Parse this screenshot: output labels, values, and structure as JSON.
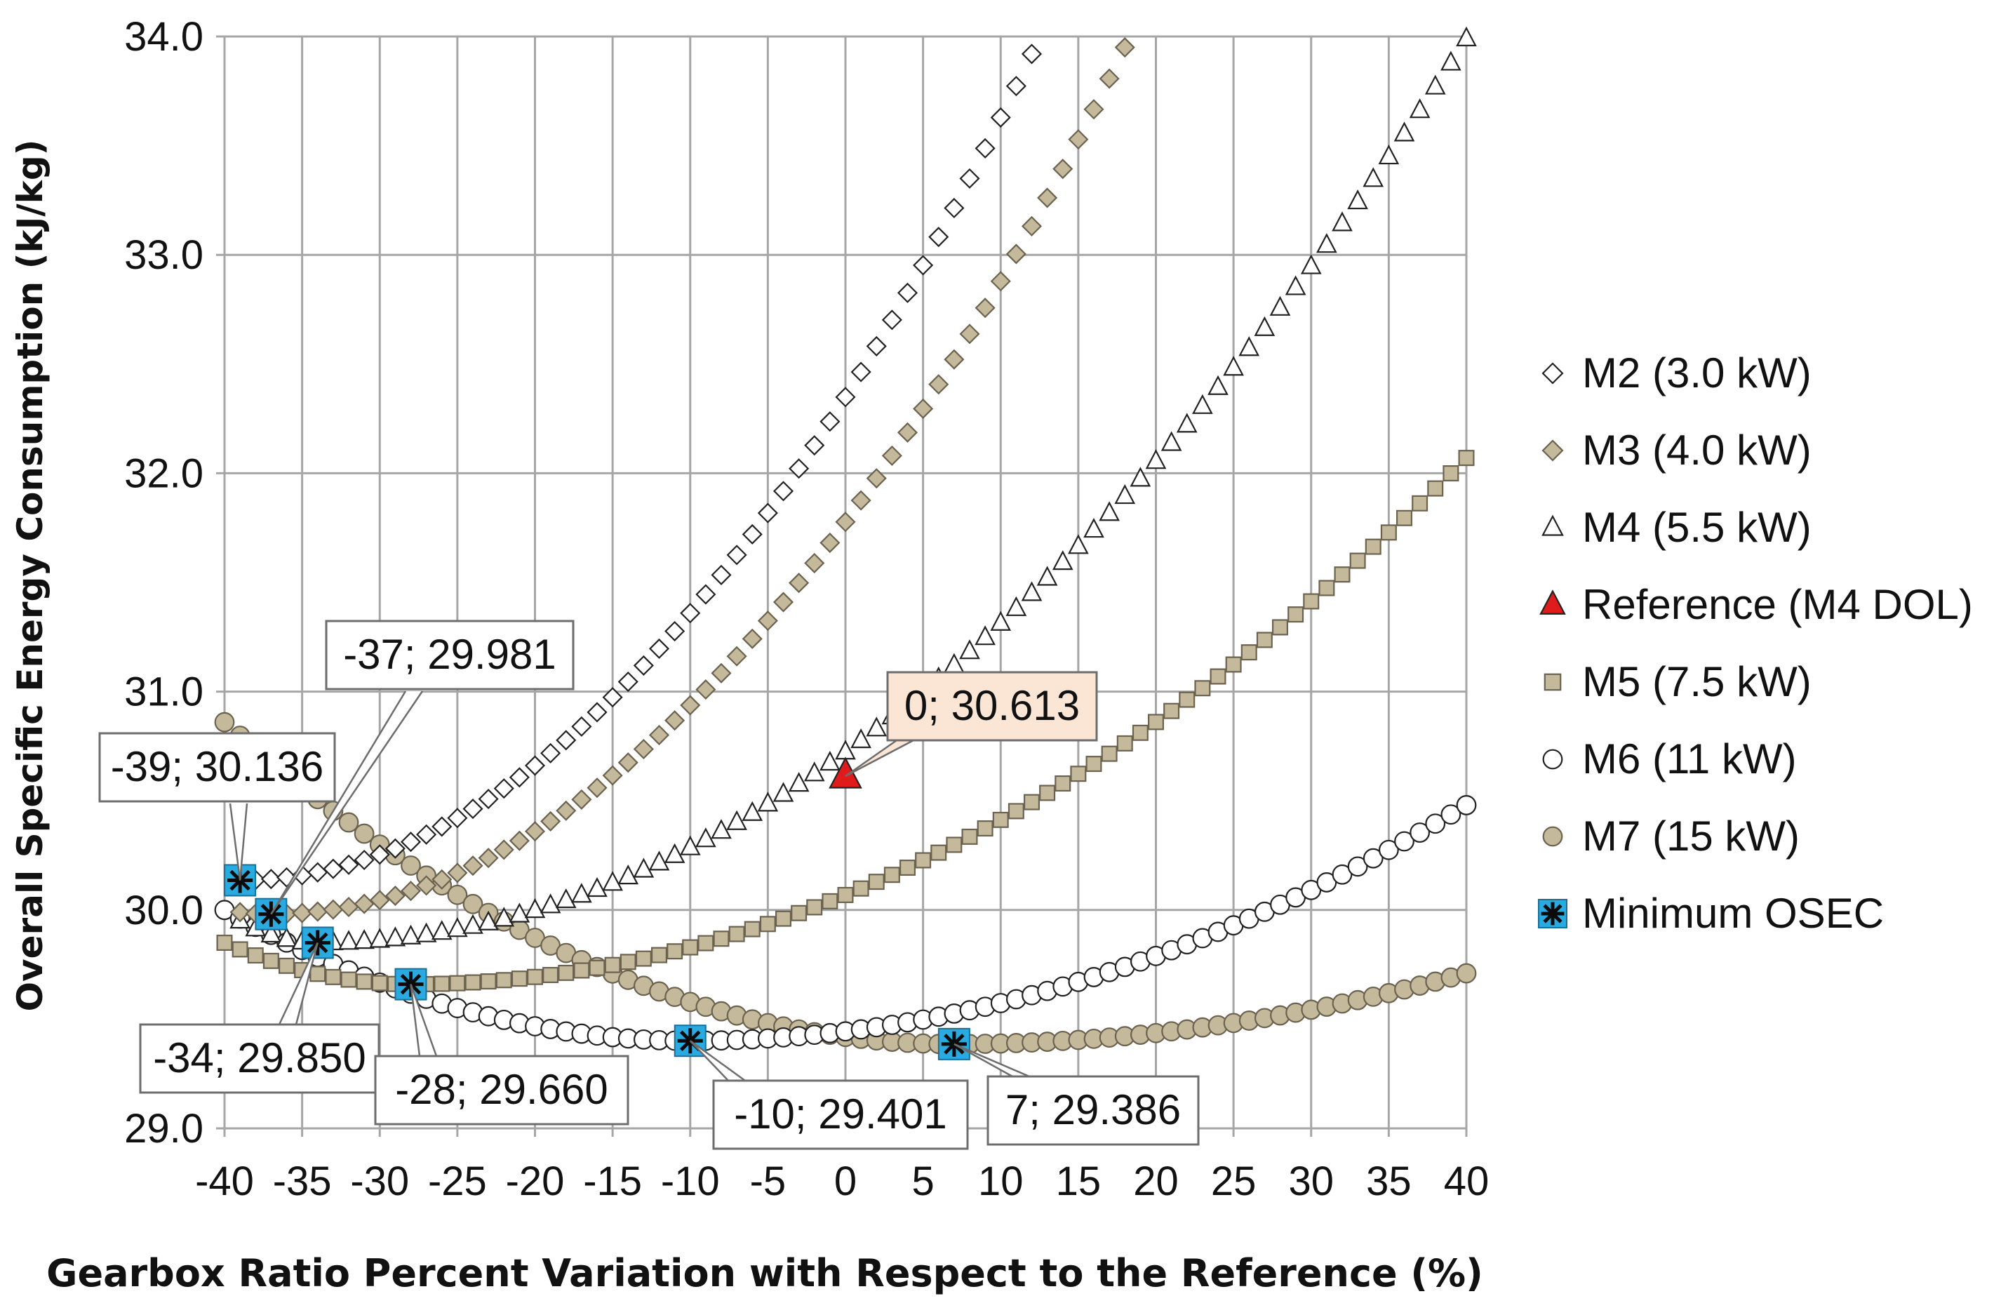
{
  "chart_data": {
    "type": "scatter",
    "title": "",
    "xlabel": "Gearbox Ratio Percent Variation with Respect to the Reference (%)",
    "ylabel": "Overall Specific Energy Consumption (kJ/kg)",
    "xlim": [
      -40,
      40
    ],
    "ylim": [
      29.0,
      34.0
    ],
    "x_ticks": [
      "-40",
      "-35",
      "-30",
      "-25",
      "-20",
      "-15",
      "-10",
      "-5",
      "0",
      "5",
      "10",
      "15",
      "20",
      "25",
      "30",
      "35",
      "40"
    ],
    "y_ticks": [
      "29.0",
      "30.0",
      "31.0",
      "32.0",
      "33.0",
      "34.0"
    ],
    "grid": true,
    "legend_position": "right",
    "series": [
      {
        "name": "M2 (3.0 kW)",
        "marker": "diamond",
        "fill": "#ffffff",
        "x_start": -39,
        "x_end": 12,
        "min_x": -39,
        "min_y": 30.136,
        "left_y": 30.136,
        "right_y": 33.92
      },
      {
        "name": "M3 (4.0 kW)",
        "marker": "diamond",
        "fill": "#c4b99a",
        "x_start": -39,
        "x_end": 18,
        "min_x": -37,
        "min_y": 29.981,
        "left_y": 29.99,
        "right_y": 33.95
      },
      {
        "name": "M4 (5.5 kW)",
        "marker": "triangle",
        "fill": "#ffffff",
        "x_start": -39,
        "x_end": 40,
        "min_x": -34,
        "min_y": 29.85,
        "left_y": 29.95,
        "right_y": 33.99
      },
      {
        "name": "Reference (M4 DOL)",
        "marker": "triangle",
        "fill": "#e01b1b",
        "points": [
          {
            "x": 0,
            "y": 30.613
          }
        ]
      },
      {
        "name": "M5 (7.5 kW)",
        "marker": "square",
        "fill": "#c4b99a",
        "x_start": -40,
        "x_end": 40,
        "min_x": -28,
        "min_y": 29.66,
        "left_y": 29.85,
        "right_y": 32.07
      },
      {
        "name": "M6 (11 kW)",
        "marker": "circle",
        "fill": "#ffffff",
        "x_start": -40,
        "x_end": 40,
        "min_x": -10,
        "min_y": 29.401,
        "left_y": 30.0,
        "right_y": 30.48
      },
      {
        "name": "M7 (15 kW)",
        "marker": "circle",
        "fill": "#c4b99a",
        "x_start": -40,
        "x_end": 40,
        "min_x": 7,
        "min_y": 29.386,
        "left_y": 30.86,
        "right_y": 29.71
      },
      {
        "name": "Minimum OSEC",
        "marker": "asterisk",
        "fill": "#29abe2",
        "points": [
          {
            "x": -39,
            "y": 30.136
          },
          {
            "x": -37,
            "y": 29.981
          },
          {
            "x": -34,
            "y": 29.85
          },
          {
            "x": -28,
            "y": 29.66
          },
          {
            "x": -10,
            "y": 29.401
          },
          {
            "x": 7,
            "y": 29.386
          }
        ]
      }
    ],
    "annotations": [
      {
        "text": "-39; 30.136",
        "x": -39,
        "y": 30.136
      },
      {
        "text": "-37; 29.981",
        "x": -37,
        "y": 29.981
      },
      {
        "text": "-34; 29.850",
        "x": -34,
        "y": 29.85
      },
      {
        "text": "-28; 29.660",
        "x": -28,
        "y": 29.66
      },
      {
        "text": "-10; 29.401",
        "x": -10,
        "y": 29.401
      },
      {
        "text": "7; 29.386",
        "x": 7,
        "y": 29.386
      },
      {
        "text": "0; 30.613",
        "x": 0,
        "y": 30.613
      }
    ]
  }
}
